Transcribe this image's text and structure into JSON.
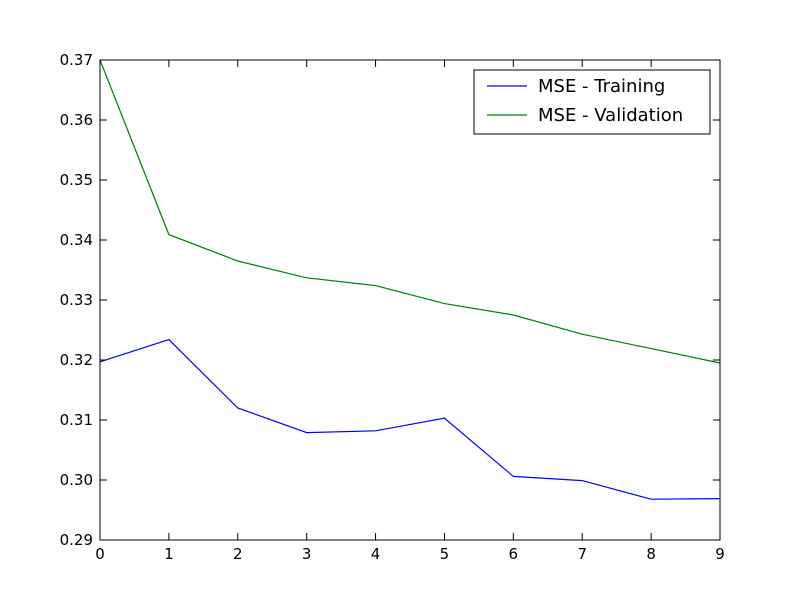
{
  "chart_data": {
    "type": "line",
    "title": "",
    "xlabel": "",
    "ylabel": "",
    "x": [
      0,
      1,
      2,
      3,
      4,
      5,
      6,
      7,
      8,
      9
    ],
    "xlim": [
      0,
      9
    ],
    "ylim": [
      0.29,
      0.37
    ],
    "xticks": [
      "0",
      "1",
      "2",
      "3",
      "4",
      "5",
      "6",
      "7",
      "8",
      "9"
    ],
    "yticks": [
      "0.29",
      "0.30",
      "0.31",
      "0.32",
      "0.33",
      "0.34",
      "0.35",
      "0.36",
      "0.37"
    ],
    "grid": false,
    "legend_position": "top-right",
    "series": [
      {
        "name": "MSE - Training",
        "color": "#0000ff",
        "values": [
          0.3197,
          0.3234,
          0.312,
          0.3079,
          0.3082,
          0.3103,
          0.3006,
          0.2999,
          0.2968,
          0.2969
        ]
      },
      {
        "name": "MSE - Validation",
        "color": "#008000",
        "values": [
          0.37,
          0.3409,
          0.3365,
          0.3337,
          0.3324,
          0.3294,
          0.3275,
          0.3243,
          0.3219,
          0.3195
        ]
      }
    ]
  }
}
